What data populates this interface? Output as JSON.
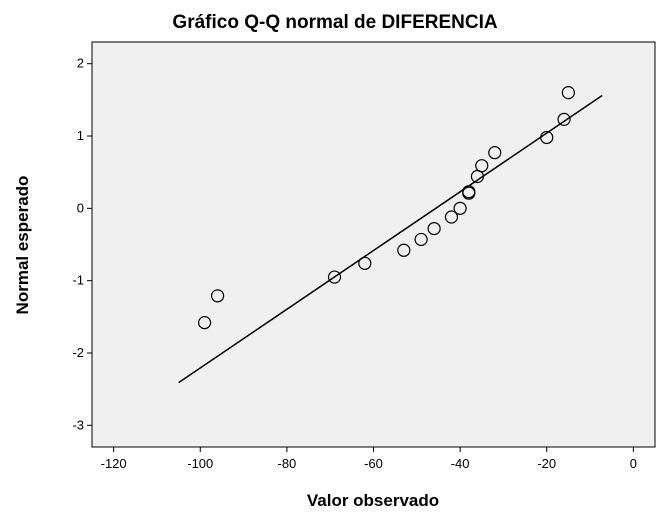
{
  "chart_data": {
    "type": "scatter",
    "title": "Gráfico Q-Q normal de DIFERENCIA",
    "x_label": "Valor observado",
    "y_label": "Normal esperado",
    "x": [
      -99,
      -96,
      -69,
      -62,
      -53,
      -49,
      -46,
      -42,
      -40,
      -38,
      -38,
      -36,
      -35,
      -32,
      -20,
      -16,
      -15
    ],
    "values": [
      -1.58,
      -1.21,
      -0.95,
      -0.76,
      -0.58,
      -0.43,
      -0.28,
      -0.12,
      0,
      0.21,
      0.23,
      0.44,
      0.59,
      0.77,
      0.98,
      1.23,
      1.6
    ],
    "reference_line": {
      "x": [
        -105,
        -7.2
      ],
      "y": [
        -2.41,
        1.56
      ]
    },
    "xlim": [
      -125,
      5
    ],
    "xticks": [
      -120,
      -100,
      -80,
      -60,
      -40,
      -20,
      0
    ],
    "ylim": [
      -3.3,
      2.3
    ],
    "yticks": [
      -3,
      -2,
      -1,
      0,
      1,
      2
    ],
    "color": "#000000",
    "plot_background": "#f0f0f0"
  }
}
